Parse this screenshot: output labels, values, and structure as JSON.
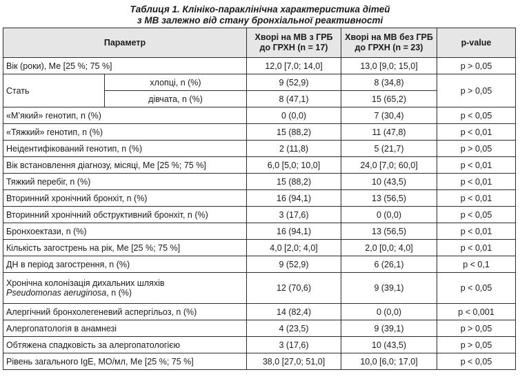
{
  "caption": {
    "line1": "Таблиця 1. Клініко-параклінічна характеристика дітей",
    "line2": "з МВ залежно від стану бронхіальної реактивності"
  },
  "headers": {
    "param": "Параметр",
    "group1": "Хворі на МВ з ГРБ до ГРХН (n = 17)",
    "group2": "Хворі на МВ без ГРБ до ГРХН (n = 23)",
    "p": "p-value"
  },
  "rows": {
    "age": {
      "label": "Вік (роки), Ме [25 %; 75 %]",
      "g1": "12,0 [7,0; 14,0]",
      "g2": "13,0 [9,0; 15,0]",
      "p": "p > 0,05"
    },
    "sex": {
      "label": "Стать",
      "boys": {
        "label": "хлопці, n (%)",
        "g1": "9 (52,9)",
        "g2": "8 (34,8)"
      },
      "girls": {
        "label": "дівчата, n (%)",
        "g1": "8 (47,1)",
        "g2": "15 (65,2)"
      },
      "p": "p > 0,05"
    },
    "mild": {
      "label": "«М’який» генотип, n (%)",
      "g1": "0 (0,0)",
      "g2": "7 (30,4)",
      "p": "p < 0,05"
    },
    "severe_gen": {
      "label": "«Тяжкий» генотип, n (%)",
      "g1": "15 (88,2)",
      "g2": "11 (47,8)",
      "p": "p < 0,01"
    },
    "unident": {
      "label": "Неідентифікований генотип, n (%)",
      "g1": "2 (11,8)",
      "g2": "5 (21,7)",
      "p": "p > 0,05"
    },
    "diag_age": {
      "label": "Вік встановлення діагнозу, місяці, Ме [25 %; 75 %]",
      "g1": "6,0 [5,0; 10,0]",
      "g2": "24,0 [7,0; 60,0]",
      "p": "p < 0,01"
    },
    "severe_course": {
      "label": "Тяжкий перебіг, n (%)",
      "g1": "15 (88,2)",
      "g2": "10 (43,5)",
      "p": "p < 0,01"
    },
    "sec_bronch": {
      "label": "Вторинний хронічний бронхіт, n (%)",
      "g1": "16 (94,1)",
      "g2": "13 (56,5)",
      "p": "p < 0,01"
    },
    "sec_obstr": {
      "label": "Вторинний хронічний обструктивний бронхіт, n (%)",
      "g1": "3 (17,6)",
      "g2": "0 (0,0)",
      "p": "p < 0,05"
    },
    "bronchiect": {
      "label": "Бронхоектази, n (%)",
      "g1": "16 (94,1)",
      "g2": "13 (56,5)",
      "p": "p < 0,01"
    },
    "exac": {
      "label": "Кількість загострень на рік, Ме [25 %; 75 %]",
      "g1": "4,0 [2,0; 4,0]",
      "g2": "2,0 [0,0; 4,0]",
      "p": "p < 0,01"
    },
    "rf": {
      "label": "ДН в період загострення, n (%)",
      "g1": "9 (52,9)",
      "g2": "6 (26,1)",
      "p": "p < 0,1"
    },
    "colon": {
      "label": "Хронічна колонізація дихальних шляхів",
      "label_it": "Pseudomonas aeruginosa",
      "label_tail": ", n (%)",
      "g1": "12 (70,6)",
      "g2": "9 (39,1)",
      "p": "p < 0,05"
    },
    "abpa": {
      "label": "Алергічний бронхолегеневий аспергільоз, n (%)",
      "g1": "14 (82,4)",
      "g2": "0 (0,0)",
      "p": "p < 0,001"
    },
    "allergo": {
      "label": "Алергопатологія в анамнезі",
      "g1": "4 (23,5)",
      "g2": "9 (39,1)",
      "p": "p > 0,05"
    },
    "heredity": {
      "label": "Обтяжена спадковість за алергопатологією",
      "g1": "3 (17,6)",
      "g2": "10 (43,5)",
      "p": "p > 0,05"
    },
    "ige": {
      "label": "Рівень загального IgE, МО/мл, Ме [25 %; 75 %]",
      "g1": "38,0 [27,0; 51,0]",
      "g2": "10,0 [6,0; 17,0]",
      "p": "p < 0,05"
    }
  }
}
